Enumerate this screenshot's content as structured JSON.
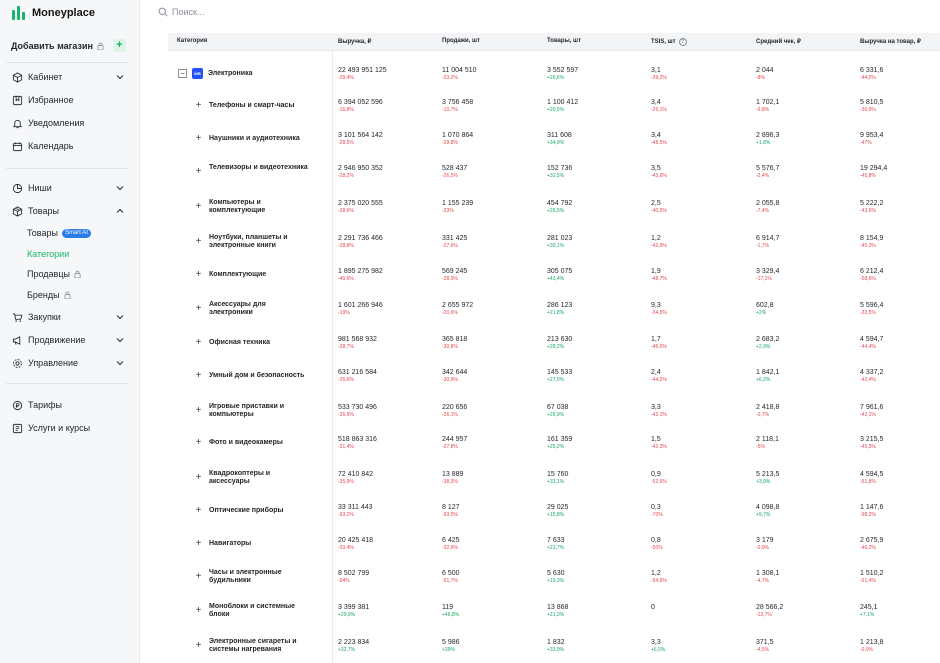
{
  "app": {
    "name": "Moneyplace",
    "brand_color": "#19b46b"
  },
  "sidebar": {
    "add_shop": "Добавить магазин",
    "groups": [
      [
        {
          "label": "Кабинет",
          "icon": "cube-icon",
          "chevron": true
        },
        {
          "label": "Избранное",
          "icon": "bookmark-icon",
          "chevron": false
        },
        {
          "label": "Уведомления",
          "icon": "bell-icon",
          "chevron": false
        },
        {
          "label": "Календарь",
          "icon": "calendar-icon",
          "chevron": false
        }
      ]
    ],
    "niches": "Ниши",
    "goods": "Товары",
    "goods_sub": [
      {
        "label": "Товары",
        "badge": "Smart AI",
        "locked": false,
        "active": false
      },
      {
        "label": "Категории",
        "badge": "",
        "locked": false,
        "active": true
      },
      {
        "label": "Продавцы",
        "badge": "",
        "locked": true,
        "active": false
      },
      {
        "label": "Бренды",
        "badge": "",
        "locked": true,
        "active": false
      }
    ],
    "purchases": "Закупки",
    "promotion": "Продвижение",
    "management": "Управление",
    "tariffs": "Тарифы",
    "services": "Услуги и курсы"
  },
  "search": {
    "placeholder": "Поиск..."
  },
  "table": {
    "columns": [
      "Категория",
      "Выручка, ₽",
      "Продажи, шт",
      "Товары, шт",
      "TSIS, шт",
      "Средний чек, ₽",
      "Выручка на товар, ₽"
    ],
    "parent": {
      "category": "Электроника",
      "logo_text": "WB",
      "cells": [
        {
          "v": "22 493 951 125",
          "c": "-29,4%",
          "s": "neg"
        },
        {
          "v": "11 004 510",
          "c": "-23,2%",
          "s": "neg"
        },
        {
          "v": "3 552 597",
          "c": "+26,6%",
          "s": "pos"
        },
        {
          "v": "3,1",
          "c": "-39,2%",
          "s": "neg"
        },
        {
          "v": "2 044",
          "c": "-8%",
          "s": "neg"
        },
        {
          "v": "6 331,6",
          "c": "-44,2%",
          "s": "neg"
        }
      ]
    },
    "rows": [
      {
        "category": "Телефоны и смарт-часы",
        "cells": [
          {
            "v": "6 394 052 596",
            "c": "-16,8%",
            "s": "neg"
          },
          {
            "v": "3 756 458",
            "c": "-10,7%",
            "s": "neg"
          },
          {
            "v": "1 100 412",
            "c": "+20,5%",
            "s": "pos"
          },
          {
            "v": "3,4",
            "c": "-26,1%",
            "s": "neg"
          },
          {
            "v": "1 702,1",
            "c": "-6,8%",
            "s": "neg"
          },
          {
            "v": "5 810,5",
            "c": "-30,9%",
            "s": "neg"
          }
        ]
      },
      {
        "category": "Наушники и аудиотехника",
        "cells": [
          {
            "v": "3 101 564 142",
            "c": "-28,5%",
            "s": "neg"
          },
          {
            "v": "1 070 864",
            "c": "-29,8%",
            "s": "neg"
          },
          {
            "v": "311 608",
            "c": "+34,9%",
            "s": "pos"
          },
          {
            "v": "3,4",
            "c": "-48,5%",
            "s": "neg"
          },
          {
            "v": "2 896,3",
            "c": "+1,8%",
            "s": "pos"
          },
          {
            "v": "9 953,4",
            "c": "-47%",
            "s": "neg"
          }
        ]
      },
      {
        "category": "Телевизоры и видеотехника",
        "cells": [
          {
            "v": "2 946 950 352",
            "c": "-28,2%",
            "s": "neg"
          },
          {
            "v": "528 437",
            "c": "-26,5%",
            "s": "neg"
          },
          {
            "v": "152 736",
            "c": "+32,5%",
            "s": "pos"
          },
          {
            "v": "3,5",
            "c": "-43,6%",
            "s": "neg"
          },
          {
            "v": "5 576,7",
            "c": "-2,4%",
            "s": "neg"
          },
          {
            "v": "19 294,4",
            "c": "-45,8%",
            "s": "neg"
          }
        ]
      },
      {
        "category": "Компьютеры и комплектующие",
        "cells": [
          {
            "v": "2 375 020 555",
            "c": "-28,6%",
            "s": "neg"
          },
          {
            "v": "1 155 239",
            "c": "-23%",
            "s": "neg"
          },
          {
            "v": "454 792",
            "c": "+26,5%",
            "s": "pos"
          },
          {
            "v": "2,5",
            "c": "-40,5%",
            "s": "neg"
          },
          {
            "v": "2 055,8",
            "c": "-7,4%",
            "s": "neg"
          },
          {
            "v": "5 222,2",
            "c": "-43,6%",
            "s": "neg"
          }
        ]
      },
      {
        "category": "Ноутбуки, планшеты и электронные книги",
        "cells": [
          {
            "v": "2 291 736 466",
            "c": "-28,8%",
            "s": "neg"
          },
          {
            "v": "331 425",
            "c": "-27,6%",
            "s": "neg"
          },
          {
            "v": "281 023",
            "c": "+30,1%",
            "s": "pos"
          },
          {
            "v": "1,2",
            "c": "-42,9%",
            "s": "neg"
          },
          {
            "v": "6 914,7",
            "c": "-1,7%",
            "s": "neg"
          },
          {
            "v": "8 154,9",
            "c": "-45,3%",
            "s": "neg"
          }
        ]
      },
      {
        "category": "Комплектующие",
        "cells": [
          {
            "v": "1 895 275 982",
            "c": "-40,6%",
            "s": "neg"
          },
          {
            "v": "569 245",
            "c": "-28,9%",
            "s": "neg"
          },
          {
            "v": "305 075",
            "c": "+43,4%",
            "s": "pos"
          },
          {
            "v": "1,9",
            "c": "-48,7%",
            "s": "neg"
          },
          {
            "v": "3 329,4",
            "c": "-17,1%",
            "s": "neg"
          },
          {
            "v": "6 212,4",
            "c": "-58,6%",
            "s": "neg"
          }
        ]
      },
      {
        "category": "Аксессуары для электроники",
        "cells": [
          {
            "v": "1 601 266 946",
            "c": "-19%",
            "s": "neg"
          },
          {
            "v": "2 655 972",
            "c": "-20,6%",
            "s": "neg"
          },
          {
            "v": "286 123",
            "c": "+21,8%",
            "s": "pos"
          },
          {
            "v": "9,3",
            "c": "-34,5%",
            "s": "neg"
          },
          {
            "v": "602,8",
            "c": "+2%",
            "s": "pos"
          },
          {
            "v": "5 596,4",
            "c": "-33,5%",
            "s": "neg"
          }
        ]
      },
      {
        "category": "Офисная техника",
        "cells": [
          {
            "v": "981 568 932",
            "c": "-28,7%",
            "s": "neg"
          },
          {
            "v": "365 818",
            "c": "-30,8%",
            "s": "neg"
          },
          {
            "v": "213 630",
            "c": "+28,2%",
            "s": "pos"
          },
          {
            "v": "1,7",
            "c": "-46,6%",
            "s": "neg"
          },
          {
            "v": "2 683,2",
            "c": "+2,9%",
            "s": "pos"
          },
          {
            "v": "4 594,7",
            "c": "-44,4%",
            "s": "neg"
          }
        ]
      },
      {
        "category": "Умный дом и безопасность",
        "cells": [
          {
            "v": "631 216 584",
            "c": "-26,6%",
            "s": "neg"
          },
          {
            "v": "342 644",
            "c": "-30,9%",
            "s": "neg"
          },
          {
            "v": "145 533",
            "c": "+27,5%",
            "s": "pos"
          },
          {
            "v": "2,4",
            "c": "-44,2%",
            "s": "neg"
          },
          {
            "v": "1 842,1",
            "c": "+6,2%",
            "s": "pos"
          },
          {
            "v": "4 337,2",
            "c": "-42,4%",
            "s": "neg"
          }
        ]
      },
      {
        "category": "Игровые приставки и компьютеры",
        "cells": [
          {
            "v": "533 730 496",
            "c": "-26,6%",
            "s": "neg"
          },
          {
            "v": "220 656",
            "c": "-26,1%",
            "s": "neg"
          },
          {
            "v": "67 038",
            "c": "+26,9%",
            "s": "pos"
          },
          {
            "v": "3,3",
            "c": "-42,1%",
            "s": "neg"
          },
          {
            "v": "2 418,8",
            "c": "-0,7%",
            "s": "neg"
          },
          {
            "v": "7 961,6",
            "c": "-42,1%",
            "s": "neg"
          }
        ]
      },
      {
        "category": "Фото и видеокамеры",
        "cells": [
          {
            "v": "518 863 316",
            "c": "-31,4%",
            "s": "neg"
          },
          {
            "v": "244 957",
            "c": "-27,8%",
            "s": "neg"
          },
          {
            "v": "161 359",
            "c": "+25,2%",
            "s": "pos"
          },
          {
            "v": "1,5",
            "c": "-42,3%",
            "s": "neg"
          },
          {
            "v": "2 118,1",
            "c": "-5%",
            "s": "neg"
          },
          {
            "v": "3 215,5",
            "c": "-45,3%",
            "s": "neg"
          }
        ]
      },
      {
        "category": "Квадрокоптеры и аксессуары",
        "cells": [
          {
            "v": "72 410 842",
            "c": "-35,9%",
            "s": "neg"
          },
          {
            "v": "13 889",
            "c": "-38,3%",
            "s": "neg"
          },
          {
            "v": "15 760",
            "c": "+33,1%",
            "s": "pos"
          },
          {
            "v": "0,9",
            "c": "-52,6%",
            "s": "neg"
          },
          {
            "v": "5 213,5",
            "c": "+3,9%",
            "s": "pos"
          },
          {
            "v": "4 594,5",
            "c": "-51,8%",
            "s": "neg"
          }
        ]
      },
      {
        "category": "Оптические приборы",
        "cells": [
          {
            "v": "33 311 443",
            "c": "-93,2%",
            "s": "neg"
          },
          {
            "v": "8 127",
            "c": "-93,5%",
            "s": "neg"
          },
          {
            "v": "29 025",
            "c": "+15,8%",
            "s": "pos"
          },
          {
            "v": "0,3",
            "c": "-70%",
            "s": "neg"
          },
          {
            "v": "4 098,8",
            "c": "+9,7%",
            "s": "pos"
          },
          {
            "v": "1 147,6",
            "c": "-98,2%",
            "s": "neg"
          }
        ]
      },
      {
        "category": "Навигаторы",
        "cells": [
          {
            "v": "20 425 418",
            "c": "-33,4%",
            "s": "neg"
          },
          {
            "v": "6 425",
            "c": "-32,9%",
            "s": "neg"
          },
          {
            "v": "7 633",
            "c": "+23,7%",
            "s": "pos"
          },
          {
            "v": "0,8",
            "c": "-50%",
            "s": "neg"
          },
          {
            "v": "3 179",
            "c": "-0,9%",
            "s": "neg"
          },
          {
            "v": "2 675,9",
            "c": "-46,2%",
            "s": "neg"
          }
        ]
      },
      {
        "category": "Часы и электронные будильники",
        "cells": [
          {
            "v": "8 502 799",
            "c": "-54%",
            "s": "neg"
          },
          {
            "v": "6 500",
            "c": "-51,7%",
            "s": "neg"
          },
          {
            "v": "5 630",
            "c": "+19,3%",
            "s": "pos"
          },
          {
            "v": "1,2",
            "c": "-54,6%",
            "s": "neg"
          },
          {
            "v": "1 308,1",
            "c": "-4,7%",
            "s": "neg"
          },
          {
            "v": "1 510,2",
            "c": "-61,4%",
            "s": "neg"
          }
        ]
      },
      {
        "category": "Моноблоки и системные блоки",
        "cells": [
          {
            "v": "3 399 381",
            "c": "+29,9%",
            "s": "pos"
          },
          {
            "v": "119",
            "c": "+46,8%",
            "s": "pos"
          },
          {
            "v": "13 868",
            "c": "+21,3%",
            "s": "pos"
          },
          {
            "v": "0",
            "c": "",
            "s": "neu"
          },
          {
            "v": "28 566,2",
            "c": "-12,7%",
            "s": "neg"
          },
          {
            "v": "245,1",
            "c": "+7,1%",
            "s": "pos"
          }
        ]
      },
      {
        "category": "Электронные сигареты и системы нагревания",
        "cells": [
          {
            "v": "2 223 834",
            "c": "+32,7%",
            "s": "pos"
          },
          {
            "v": "5 986",
            "c": "+39%",
            "s": "pos"
          },
          {
            "v": "1 832",
            "c": "+33,9%",
            "s": "pos"
          },
          {
            "v": "3,3",
            "c": "+6,5%",
            "s": "pos"
          },
          {
            "v": "371,5",
            "c": "-4,5%",
            "s": "neg"
          },
          {
            "v": "1 213,8",
            "c": "-0,9%",
            "s": "neg"
          }
        ]
      }
    ]
  }
}
